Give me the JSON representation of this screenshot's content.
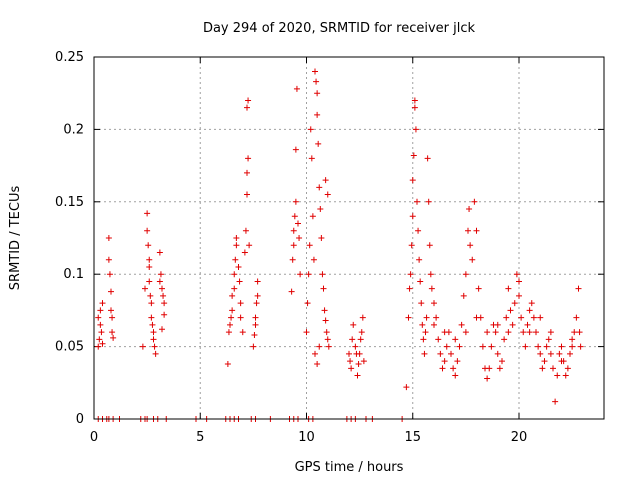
{
  "chart_data": {
    "type": "scatter",
    "title": "Day 294 of 2020, SRMTID for receiver jlck",
    "xlabel": "GPS time / hours",
    "ylabel": "SRMTID / TECUs",
    "xlim": [
      0,
      24
    ],
    "ylim": [
      0,
      0.25
    ],
    "grid": true,
    "x_ticks": [
      0,
      5,
      10,
      15,
      20
    ],
    "x_tick_labels": [
      "0",
      "5",
      "10",
      "15",
      "20"
    ],
    "y_ticks": [
      0,
      0.05,
      0.1,
      0.15,
      0.2,
      0.25
    ],
    "y_tick_labels": [
      "0",
      "0.05",
      "0.1",
      "0.15",
      "0.2",
      "0.25"
    ],
    "series": [
      {
        "name": "SRMTID",
        "marker": "plus",
        "color": "#e00000",
        "points": [
          [
            0.2,
            0.05
          ],
          [
            0.2,
            0.07
          ],
          [
            0.25,
            0.055
          ],
          [
            0.3,
            0.065
          ],
          [
            0.3,
            0.075
          ],
          [
            0.35,
            0.06
          ],
          [
            0.4,
            0.052
          ],
          [
            0.4,
            0.08
          ],
          [
            0.7,
            0.125
          ],
          [
            0.7,
            0.11
          ],
          [
            0.75,
            0.1
          ],
          [
            0.8,
            0.088
          ],
          [
            0.8,
            0.075
          ],
          [
            0.85,
            0.07
          ],
          [
            0.85,
            0.06
          ],
          [
            0.9,
            0.056
          ],
          [
            2.3,
            0.05
          ],
          [
            2.4,
            0.09
          ],
          [
            2.5,
            0.142
          ],
          [
            2.5,
            0.13
          ],
          [
            2.55,
            0.12
          ],
          [
            2.6,
            0.105
          ],
          [
            2.6,
            0.095
          ],
          [
            2.65,
            0.085
          ],
          [
            2.7,
            0.08
          ],
          [
            2.7,
            0.07
          ],
          [
            2.75,
            0.065
          ],
          [
            2.8,
            0.06
          ],
          [
            2.8,
            0.055
          ],
          [
            2.85,
            0.05
          ],
          [
            2.9,
            0.045
          ],
          [
            2.6,
            0.11
          ],
          [
            3.1,
            0.115
          ],
          [
            3.15,
            0.1
          ],
          [
            3.2,
            0.09
          ],
          [
            3.25,
            0.085
          ],
          [
            3.3,
            0.08
          ],
          [
            3.3,
            0.072
          ],
          [
            3.2,
            0.062
          ],
          [
            3.1,
            0.095
          ],
          [
            6.3,
            0.038
          ],
          [
            6.35,
            0.06
          ],
          [
            6.4,
            0.065
          ],
          [
            6.45,
            0.07
          ],
          [
            6.5,
            0.075
          ],
          [
            6.5,
            0.085
          ],
          [
            6.6,
            0.09
          ],
          [
            6.6,
            0.1
          ],
          [
            6.65,
            0.11
          ],
          [
            6.7,
            0.12
          ],
          [
            6.7,
            0.125
          ],
          [
            6.8,
            0.105
          ],
          [
            6.85,
            0.095
          ],
          [
            6.9,
            0.08
          ],
          [
            6.9,
            0.07
          ],
          [
            7.0,
            0.06
          ],
          [
            7.1,
            0.115
          ],
          [
            7.15,
            0.13
          ],
          [
            7.2,
            0.155
          ],
          [
            7.2,
            0.17
          ],
          [
            7.25,
            0.18
          ],
          [
            7.2,
            0.215
          ],
          [
            7.25,
            0.22
          ],
          [
            7.3,
            0.12
          ],
          [
            7.5,
            0.05
          ],
          [
            7.55,
            0.058
          ],
          [
            7.6,
            0.065
          ],
          [
            7.6,
            0.07
          ],
          [
            7.65,
            0.08
          ],
          [
            7.7,
            0.085
          ],
          [
            7.7,
            0.095
          ],
          [
            9.3,
            0.088
          ],
          [
            9.35,
            0.11
          ],
          [
            9.4,
            0.12
          ],
          [
            9.4,
            0.13
          ],
          [
            9.45,
            0.14
          ],
          [
            9.5,
            0.15
          ],
          [
            9.5,
            0.186
          ],
          [
            9.55,
            0.228
          ],
          [
            9.6,
            0.135
          ],
          [
            9.65,
            0.125
          ],
          [
            9.7,
            0.1
          ],
          [
            10.0,
            0.06
          ],
          [
            10.05,
            0.08
          ],
          [
            10.1,
            0.1
          ],
          [
            10.15,
            0.12
          ],
          [
            10.2,
            0.2
          ],
          [
            10.25,
            0.18
          ],
          [
            10.3,
            0.14
          ],
          [
            10.35,
            0.11
          ],
          [
            10.4,
            0.24
          ],
          [
            10.45,
            0.233
          ],
          [
            10.5,
            0.225
          ],
          [
            10.5,
            0.21
          ],
          [
            10.55,
            0.19
          ],
          [
            10.6,
            0.16
          ],
          [
            10.65,
            0.145
          ],
          [
            10.7,
            0.125
          ],
          [
            10.75,
            0.1
          ],
          [
            10.8,
            0.09
          ],
          [
            10.85,
            0.075
          ],
          [
            10.9,
            0.068
          ],
          [
            10.95,
            0.06
          ],
          [
            11.0,
            0.055
          ],
          [
            11.05,
            0.05
          ],
          [
            10.9,
            0.165
          ],
          [
            11.0,
            0.155
          ],
          [
            10.4,
            0.045
          ],
          [
            10.5,
            0.038
          ],
          [
            10.6,
            0.05
          ],
          [
            12.0,
            0.045
          ],
          [
            12.05,
            0.04
          ],
          [
            12.1,
            0.035
          ],
          [
            12.15,
            0.055
          ],
          [
            12.2,
            0.065
          ],
          [
            12.3,
            0.05
          ],
          [
            12.35,
            0.045
          ],
          [
            12.4,
            0.03
          ],
          [
            12.45,
            0.038
          ],
          [
            12.5,
            0.045
          ],
          [
            12.55,
            0.055
          ],
          [
            12.6,
            0.06
          ],
          [
            12.65,
            0.07
          ],
          [
            12.7,
            0.04
          ],
          [
            14.7,
            0.022
          ],
          [
            14.8,
            0.07
          ],
          [
            14.85,
            0.09
          ],
          [
            14.9,
            0.1
          ],
          [
            14.95,
            0.12
          ],
          [
            15.0,
            0.14
          ],
          [
            15.0,
            0.165
          ],
          [
            15.05,
            0.182
          ],
          [
            15.1,
            0.215
          ],
          [
            15.1,
            0.22
          ],
          [
            15.15,
            0.2
          ],
          [
            15.2,
            0.15
          ],
          [
            15.25,
            0.13
          ],
          [
            15.3,
            0.11
          ],
          [
            15.35,
            0.095
          ],
          [
            15.4,
            0.08
          ],
          [
            15.45,
            0.065
          ],
          [
            15.5,
            0.055
          ],
          [
            15.55,
            0.045
          ],
          [
            15.6,
            0.06
          ],
          [
            15.65,
            0.07
          ],
          [
            15.7,
            0.18
          ],
          [
            15.75,
            0.15
          ],
          [
            15.8,
            0.12
          ],
          [
            15.85,
            0.1
          ],
          [
            15.9,
            0.09
          ],
          [
            16.0,
            0.08
          ],
          [
            16.1,
            0.07
          ],
          [
            16.2,
            0.055
          ],
          [
            16.3,
            0.045
          ],
          [
            16.4,
            0.035
          ],
          [
            16.5,
            0.04
          ],
          [
            16.6,
            0.05
          ],
          [
            16.7,
            0.06
          ],
          [
            16.8,
            0.045
          ],
          [
            16.9,
            0.035
          ],
          [
            17.0,
            0.03
          ],
          [
            17.1,
            0.04
          ],
          [
            17.2,
            0.05
          ],
          [
            17.3,
            0.065
          ],
          [
            17.4,
            0.085
          ],
          [
            17.5,
            0.1
          ],
          [
            17.6,
            0.13
          ],
          [
            17.65,
            0.145
          ],
          [
            17.7,
            0.12
          ],
          [
            17.8,
            0.11
          ],
          [
            17.9,
            0.15
          ],
          [
            18.0,
            0.13
          ],
          [
            18.1,
            0.09
          ],
          [
            18.2,
            0.07
          ],
          [
            18.3,
            0.05
          ],
          [
            18.4,
            0.035
          ],
          [
            18.5,
            0.028
          ],
          [
            18.6,
            0.035
          ],
          [
            18.7,
            0.05
          ],
          [
            18.8,
            0.065
          ],
          [
            18.9,
            0.06
          ],
          [
            19.0,
            0.045
          ],
          [
            19.1,
            0.035
          ],
          [
            19.2,
            0.04
          ],
          [
            19.3,
            0.055
          ],
          [
            19.4,
            0.07
          ],
          [
            19.5,
            0.09
          ],
          [
            19.6,
            0.075
          ],
          [
            19.7,
            0.065
          ],
          [
            19.8,
            0.08
          ],
          [
            19.9,
            0.1
          ],
          [
            20.0,
            0.095
          ],
          [
            20.1,
            0.07
          ],
          [
            20.2,
            0.06
          ],
          [
            20.3,
            0.05
          ],
          [
            20.4,
            0.065
          ],
          [
            20.5,
            0.075
          ],
          [
            20.6,
            0.08
          ],
          [
            20.7,
            0.07
          ],
          [
            20.8,
            0.06
          ],
          [
            20.9,
            0.05
          ],
          [
            21.0,
            0.045
          ],
          [
            21.1,
            0.035
          ],
          [
            21.2,
            0.04
          ],
          [
            21.3,
            0.05
          ],
          [
            21.4,
            0.055
          ],
          [
            21.5,
            0.045
          ],
          [
            21.6,
            0.035
          ],
          [
            21.7,
            0.012
          ],
          [
            21.8,
            0.03
          ],
          [
            21.9,
            0.045
          ],
          [
            22.0,
            0.05
          ],
          [
            22.1,
            0.04
          ],
          [
            22.2,
            0.03
          ],
          [
            22.3,
            0.035
          ],
          [
            22.4,
            0.045
          ],
          [
            22.5,
            0.055
          ],
          [
            22.6,
            0.06
          ],
          [
            22.7,
            0.07
          ],
          [
            22.8,
            0.09
          ],
          [
            22.85,
            0.06
          ],
          [
            22.9,
            0.05
          ],
          [
            16.0,
            0.065
          ],
          [
            16.5,
            0.06
          ],
          [
            17.0,
            0.055
          ],
          [
            17.5,
            0.06
          ],
          [
            18.0,
            0.07
          ],
          [
            18.5,
            0.06
          ],
          [
            19.0,
            0.065
          ],
          [
            19.5,
            0.06
          ],
          [
            20.0,
            0.085
          ],
          [
            20.5,
            0.06
          ],
          [
            21.0,
            0.07
          ],
          [
            21.5,
            0.06
          ],
          [
            22.0,
            0.04
          ],
          [
            22.5,
            0.05
          ],
          [
            0.2,
            0
          ],
          [
            0.4,
            0
          ],
          [
            0.6,
            0
          ],
          [
            0.7,
            0
          ],
          [
            0.9,
            0
          ],
          [
            1.2,
            0
          ],
          [
            2.2,
            0
          ],
          [
            2.4,
            0
          ],
          [
            2.5,
            0
          ],
          [
            2.8,
            0
          ],
          [
            3.0,
            0
          ],
          [
            3.4,
            0
          ],
          [
            4.8,
            0
          ],
          [
            5.3,
            0
          ],
          [
            6.2,
            0
          ],
          [
            6.4,
            0
          ],
          [
            6.6,
            0
          ],
          [
            6.8,
            0
          ],
          [
            7.4,
            0
          ],
          [
            7.6,
            0
          ],
          [
            8.3,
            0
          ],
          [
            9.2,
            0
          ],
          [
            9.4,
            0
          ],
          [
            9.6,
            0
          ],
          [
            10.1,
            0
          ],
          [
            10.3,
            0
          ],
          [
            11.9,
            0
          ],
          [
            12.1,
            0
          ],
          [
            12.3,
            0
          ],
          [
            12.8,
            0
          ],
          [
            13.1,
            0
          ],
          [
            14.5,
            0
          ]
        ]
      }
    ]
  }
}
